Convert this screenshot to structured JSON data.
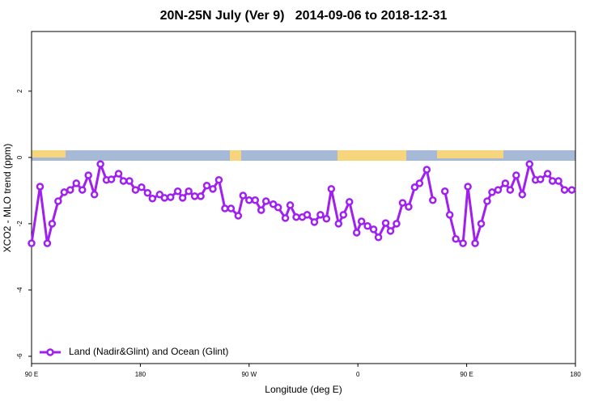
{
  "chart_data": {
    "type": "line",
    "title": "20N-25N July (Ver 9)   2014-09-06 to 2018-12-31",
    "xlabel": "Longitude (deg E)",
    "ylabel": "XCO2 - MLO trend (ppm)",
    "xlim": [
      90,
      540
    ],
    "ylim": [
      -6.22,
      3.8
    ],
    "xticks": [
      {
        "value": 90,
        "label": "90 E"
      },
      180,
      {
        "value": 270,
        "label": "90 W"
      },
      {
        "value": 360,
        "label": "0"
      },
      {
        "value": 450,
        "label": "90 E"
      },
      {
        "value": 540,
        "label": "180"
      }
    ],
    "yticks": [
      -6,
      -4,
      -2,
      0,
      2
    ],
    "legend": "bottomleft",
    "x": [
      90,
      97,
      103,
      107,
      112,
      117,
      122,
      127,
      132,
      137,
      142,
      147,
      152,
      156,
      162,
      166,
      171,
      176,
      181,
      186,
      190,
      196,
      200,
      205,
      211,
      215,
      220,
      225,
      230,
      235,
      240,
      245,
      250,
      255,
      261,
      265,
      270,
      275,
      280,
      284,
      290,
      294,
      300,
      304,
      309,
      314,
      318,
      324,
      329,
      334,
      338,
      344,
      348,
      353,
      359,
      363,
      368,
      373,
      377,
      383,
      387,
      392,
      397,
      402,
      407,
      411,
      417,
      422,
      427,
      432,
      436,
      441,
      447,
      451,
      457,
      462,
      467,
      471,
      476,
      482,
      486,
      491,
      496,
      502,
      507,
      511,
      517,
      521,
      526,
      531,
      537
    ],
    "series": [
      {
        "name": "Land (Nadir&Glint) and Ocean (Glint)",
        "color": "#a020f0",
        "values": [
          -2.59,
          -0.88,
          -2.59,
          -2.0,
          -1.32,
          -1.05,
          -0.98,
          -0.78,
          -0.98,
          -0.54,
          -1.12,
          -0.2,
          -0.68,
          -0.66,
          -0.49,
          -0.71,
          -0.71,
          -0.98,
          -0.9,
          -1.07,
          -1.24,
          -1.12,
          -1.22,
          -1.2,
          -1.02,
          -1.22,
          -1.02,
          -1.17,
          -1.17,
          -0.85,
          -0.95,
          -0.68,
          -1.54,
          -1.54,
          -1.76,
          -1.15,
          -1.29,
          -1.29,
          -1.59,
          -1.32,
          -1.41,
          -1.51,
          -1.83,
          -1.44,
          -1.8,
          -1.8,
          -1.73,
          -1.95,
          -1.73,
          -1.85,
          -0.95,
          -2.0,
          -1.73,
          -1.34,
          -2.27,
          -1.93,
          -2.07,
          -2.17,
          -2.41,
          -1.98,
          -2.22,
          -2.0,
          -1.37,
          -1.49,
          -0.9,
          -0.78,
          -0.37,
          -1.29,
          null,
          -1.02,
          -1.73,
          -2.46,
          -2.59,
          -0.88,
          -2.59,
          -2.0,
          -1.32,
          -1.05,
          -0.98,
          -0.78,
          -0.98,
          -0.54,
          -1.12,
          -0.2,
          -0.68,
          -0.66,
          -0.49,
          -0.71,
          -0.71,
          -0.98,
          -0.98
        ]
      }
    ]
  }
}
